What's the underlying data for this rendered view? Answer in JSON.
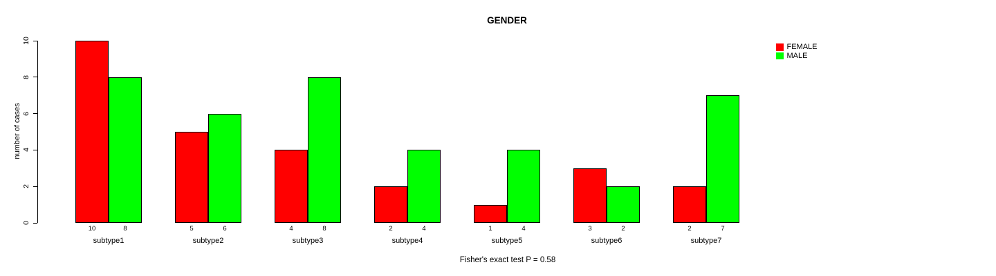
{
  "chart_data": {
    "type": "bar",
    "title": "GENDER",
    "categories": [
      "subtype1",
      "subtype2",
      "subtype3",
      "subtype4",
      "subtype5",
      "subtype6",
      "subtype7"
    ],
    "series": [
      {
        "name": "FEMALE",
        "color": "#FF0000",
        "values": [
          10,
          5,
          4,
          2,
          1,
          3,
          2
        ]
      },
      {
        "name": "MALE",
        "color": "#00FF00",
        "values": [
          8,
          6,
          8,
          4,
          4,
          2,
          7
        ]
      }
    ],
    "ylabel": "number of cases",
    "xlabel": "",
    "yticks": [
      0,
      2,
      4,
      6,
      8,
      10
    ],
    "ylim": [
      0,
      10
    ],
    "grid": false,
    "legend_position": "top-right",
    "show_value_labels_under_bars": true,
    "caption": "Fisher's exact test P = 0.58"
  },
  "colors": {
    "bar_border": "#000000",
    "axis": "#000000",
    "text": "#000000",
    "background": "#FFFFFF"
  }
}
